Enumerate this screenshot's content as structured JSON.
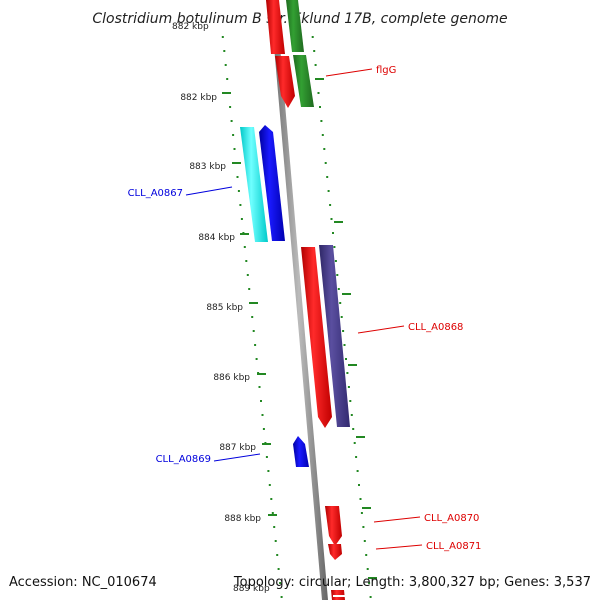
{
  "title": "Clostridium botulinum B str. Eklund 17B, complete genome",
  "footer": {
    "accession": "Accession: NC_010674",
    "topology": "Topology: circular; Length: 3,800,327 bp; Genes: 3,537"
  },
  "kbp_ticks": [
    "882 kbp",
    "883 kbp",
    "884 kbp",
    "885 kbp",
    "886 kbp",
    "887 kbp",
    "888 kbp"
  ],
  "kbp_ticks_partial": [
    "882 kbp",
    "889 kbp"
  ],
  "gene_labels": [
    {
      "id": "flgG",
      "text": "flgG",
      "color": "#dd0000"
    },
    {
      "id": "CLL_A0867",
      "text": "CLL_A0867",
      "color": "#0000dd"
    },
    {
      "id": "CLL_A0868",
      "text": "CLL_A0868",
      "color": "#dd0000"
    },
    {
      "id": "CLL_A0869",
      "text": "CLL_A0869",
      "color": "#0000dd"
    },
    {
      "id": "CLL_A0870",
      "text": "CLL_A0870",
      "color": "#dd0000"
    },
    {
      "id": "CLL_A0871",
      "text": "CLL_A0871",
      "color": "#dd0000"
    }
  ],
  "colors": {
    "backbone": "#888888",
    "tick_green": "#228822",
    "red_gene": "#ff0000",
    "green_gene": "#2a8a2a",
    "blue_gene": "#0000ee",
    "cyan_gene": "#00ffff",
    "purple_gene": "#4a3f8c"
  }
}
